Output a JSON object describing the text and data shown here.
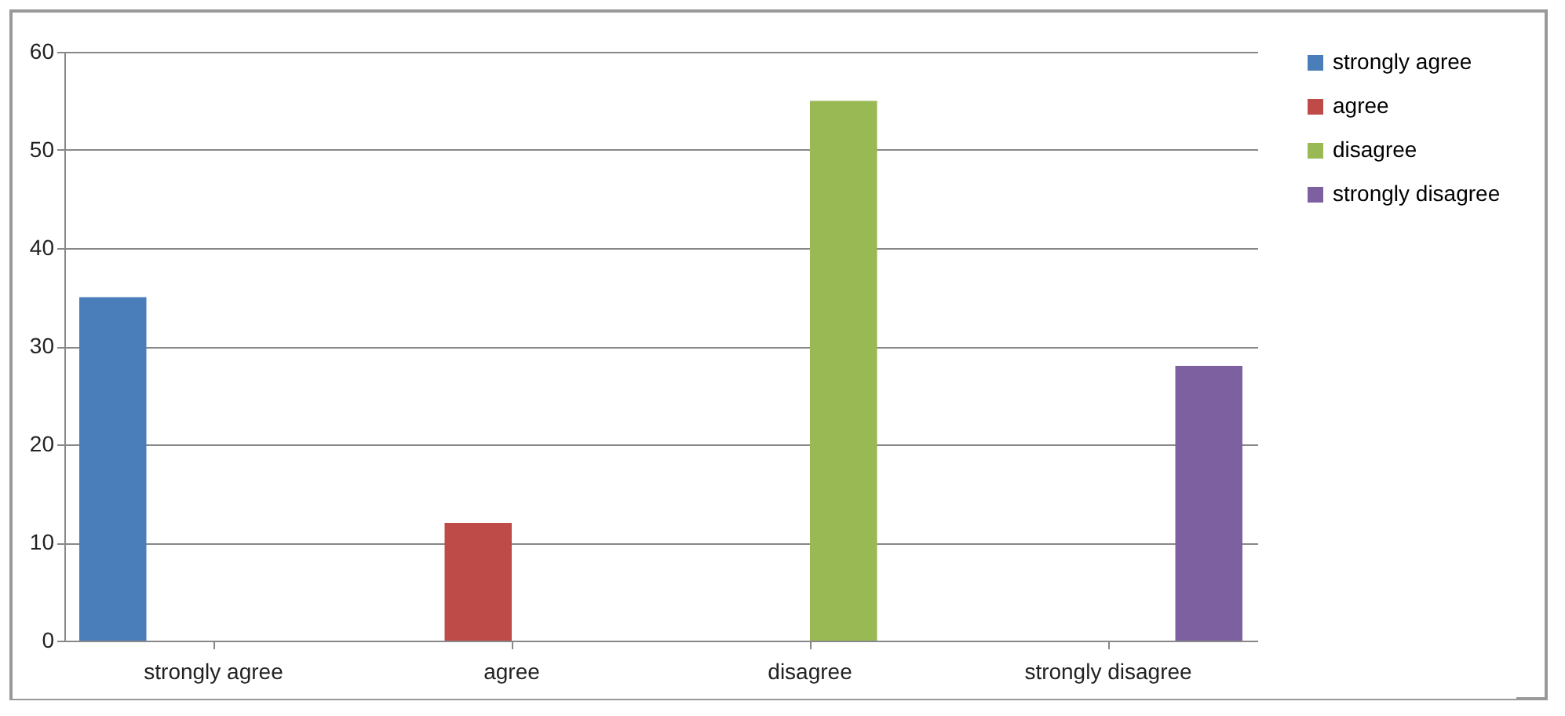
{
  "chart_data": {
    "type": "bar",
    "categories": [
      "strongly agree",
      "agree",
      "disagree",
      "strongly disagree"
    ],
    "series": [
      {
        "name": "strongly agree",
        "color": "#4a7ebb",
        "values": [
          35,
          0,
          0,
          0
        ]
      },
      {
        "name": "agree",
        "color": "#be4b48",
        "values": [
          0,
          12,
          0,
          0
        ]
      },
      {
        "name": "disagree",
        "color": "#98b954",
        "values": [
          0,
          0,
          55,
          0
        ]
      },
      {
        "name": "strongly disagree",
        "color": "#7d60a0",
        "values": [
          0,
          0,
          0,
          28
        ]
      }
    ],
    "ylim": [
      0,
      60
    ],
    "yticks": [
      0,
      10,
      20,
      30,
      40,
      50,
      60
    ],
    "grid": "y",
    "legend": "right"
  }
}
